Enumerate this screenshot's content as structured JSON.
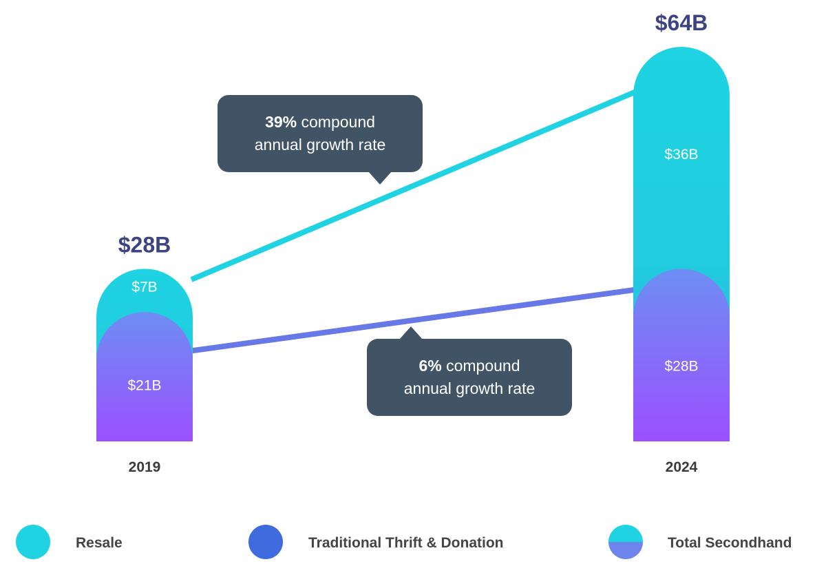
{
  "chart_data": {
    "type": "bar",
    "categories": [
      "2019",
      "2024"
    ],
    "series": [
      {
        "name": "Resale",
        "values": [
          7,
          36
        ]
      },
      {
        "name": "Traditional Thrift & Donation",
        "values": [
          21,
          28
        ]
      }
    ],
    "totals": [
      "$28B",
      "$64B"
    ],
    "segment_labels": {
      "resale": [
        "$7B",
        "$36B"
      ],
      "thrift": [
        "$21B",
        "$28B"
      ]
    },
    "ylim": [
      0,
      64
    ],
    "annotations": [
      {
        "series": "Resale",
        "bold": "39%",
        "line1": " compound",
        "line2": "annual growth rate"
      },
      {
        "series": "Traditional Thrift & Donation",
        "bold": "6%",
        "line1": " compound",
        "line2": "annual growth rate"
      }
    ],
    "legend": [
      {
        "label": "Resale",
        "swatch": "resale"
      },
      {
        "label": "Traditional Thrift & Donation",
        "swatch": "thrift"
      },
      {
        "label": "Total Secondhand",
        "swatch": "total"
      }
    ],
    "legend_placement": "bottom",
    "grid": false
  },
  "colors": {
    "resale": "#1fd3e2",
    "thrift_top": "#6d8ef3",
    "thrift_bottom": "#9b50ff",
    "thrift_legend": "#3f6bdf",
    "total_bottom": "#6d84ec",
    "resale_line": "#1fd3e2",
    "thrift_line": "#6878e6",
    "callout_bg": "#415466",
    "callout_text": "#ffffff",
    "total_label": "#3d4484",
    "axis_text": "#3a3a3a",
    "legend_text": "#444444"
  }
}
